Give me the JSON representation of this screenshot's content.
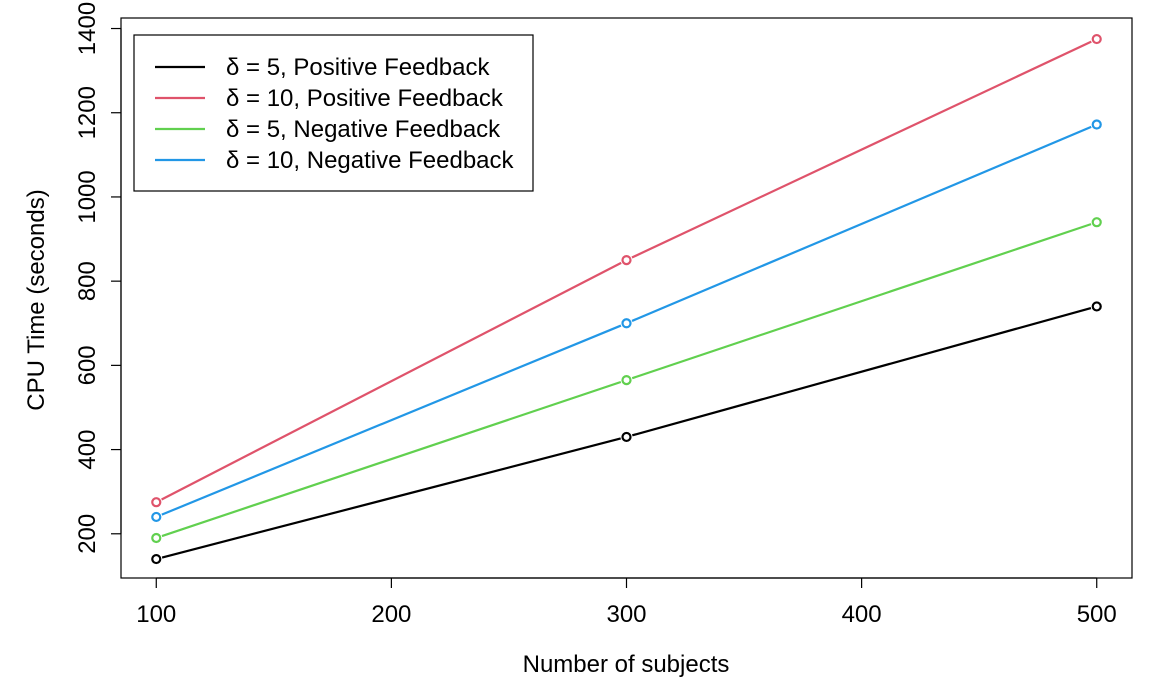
{
  "chart_data": {
    "type": "line",
    "x": [
      100,
      300,
      500
    ],
    "xlabel": "Number of subjects",
    "ylabel": "CPU Time (seconds)",
    "xlim": [
      85,
      515
    ],
    "ylim": [
      95,
      1425
    ],
    "xticks": [
      100,
      200,
      300,
      400,
      500
    ],
    "yticks": [
      200,
      400,
      600,
      800,
      1000,
      1200,
      1400
    ],
    "legend_position": "top-left",
    "series": [
      {
        "name": "δ = 5, Positive Feedback",
        "color": "#000000",
        "values": [
          140,
          430,
          740
        ]
      },
      {
        "name": "δ = 10, Positive Feedback",
        "color": "#DF536B",
        "values": [
          275,
          850,
          1375
        ]
      },
      {
        "name": "δ = 5, Negative Feedback",
        "color": "#61D04F",
        "values": [
          190,
          565,
          940
        ]
      },
      {
        "name": "δ = 10, Negative Feedback",
        "color": "#2297E6",
        "values": [
          240,
          700,
          1172
        ]
      }
    ]
  }
}
